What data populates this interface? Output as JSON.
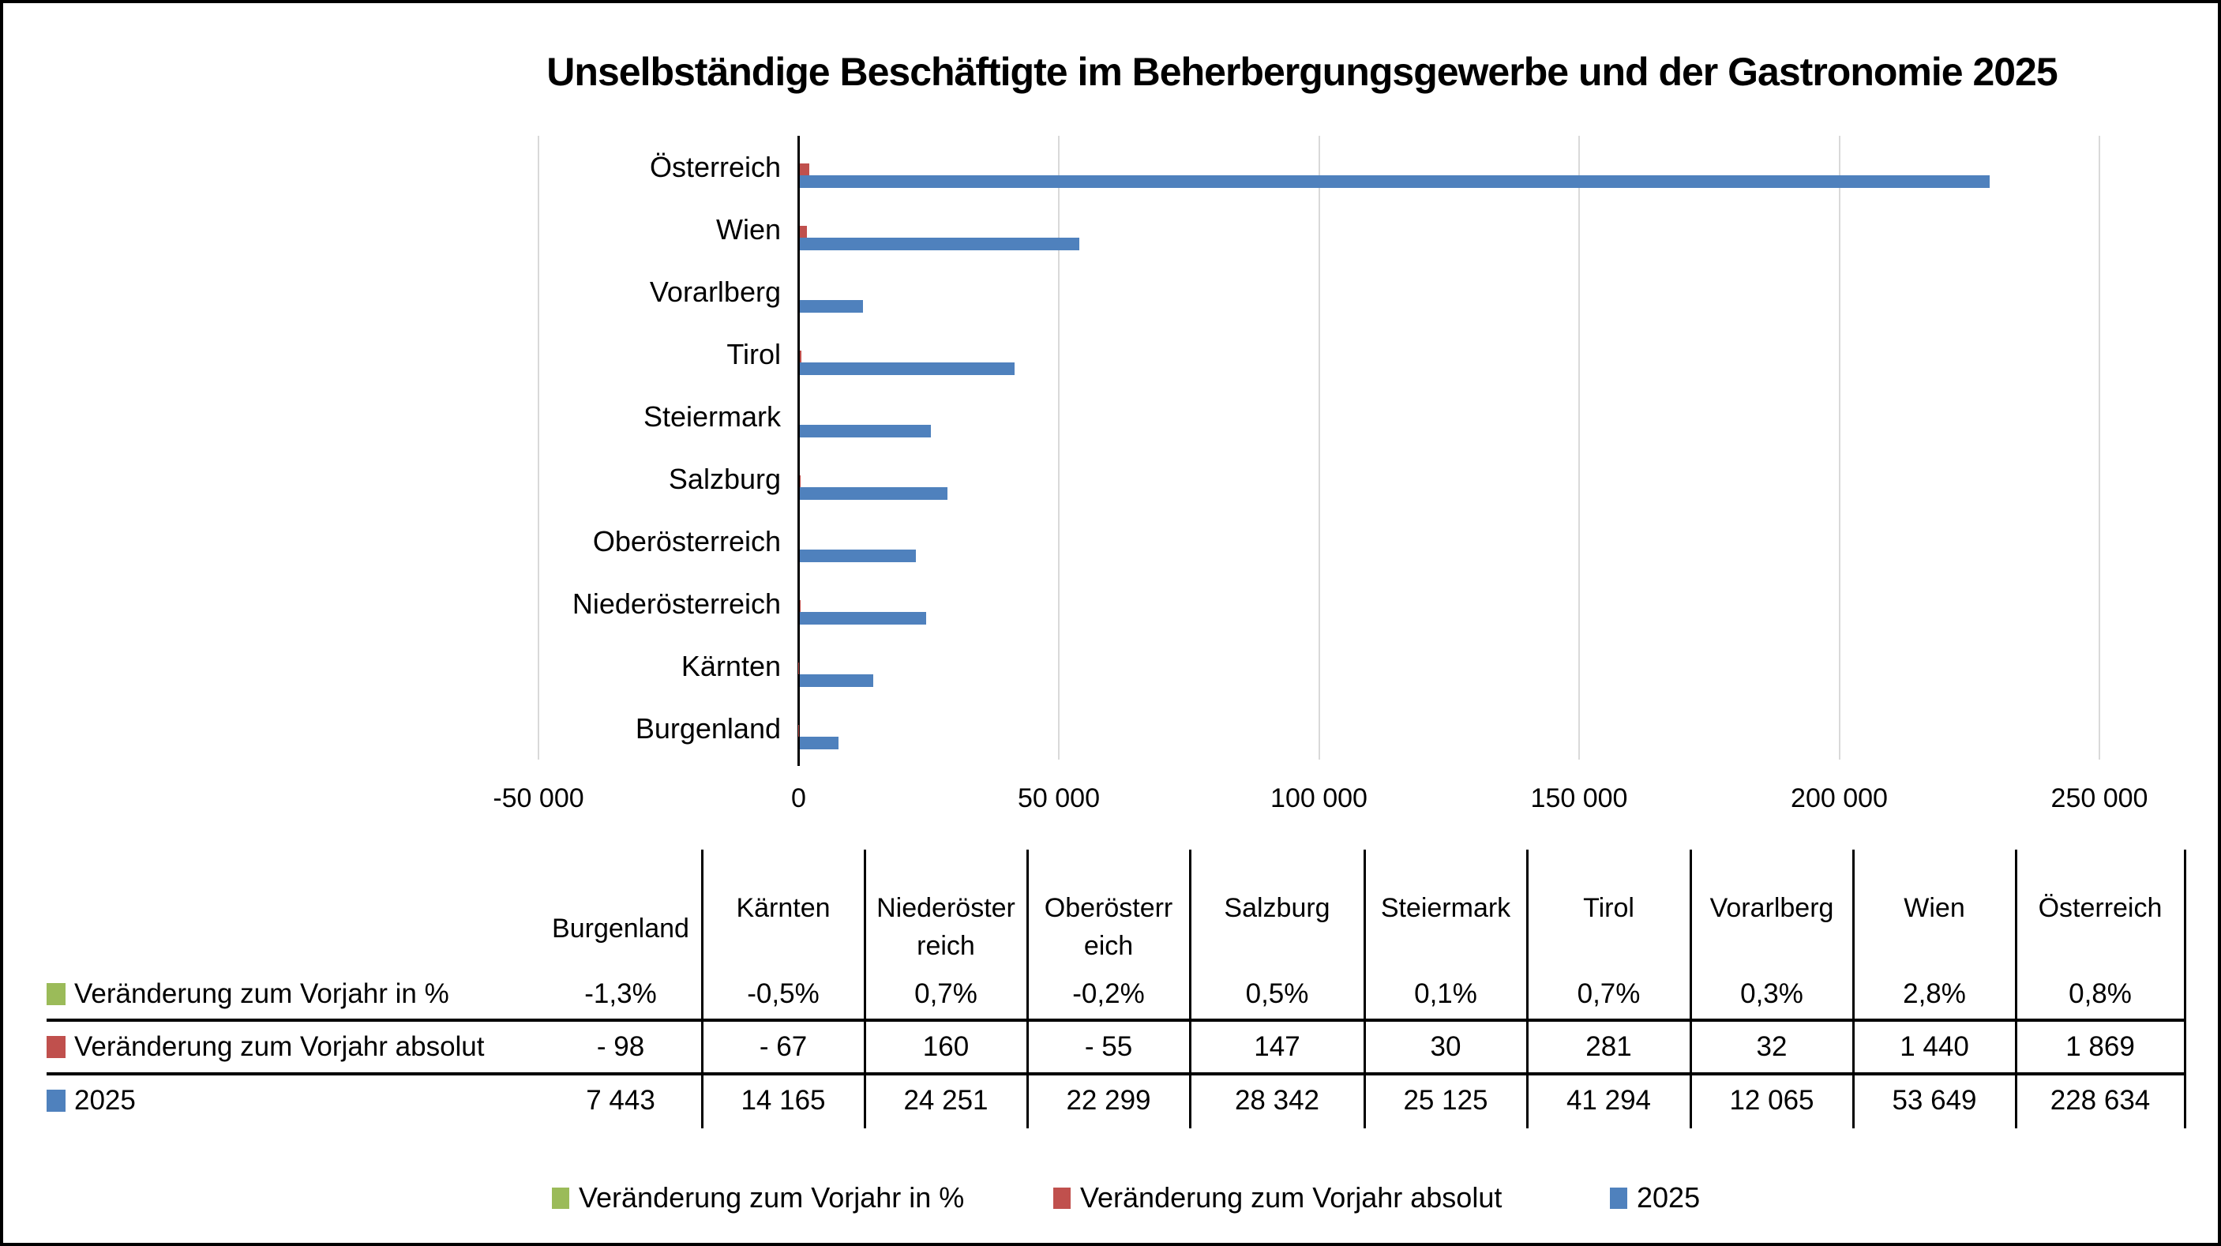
{
  "title": "Unselbständige Beschäftigte im Beherbergungsgewerbe und der Gastronomie 2025",
  "colors": {
    "series_percent": "#9bbb59",
    "series_absolut": "#c0504d",
    "series_2025": "#4f81bd",
    "gridline": "#d9d9d9",
    "axis": "#000000"
  },
  "chart_data": {
    "type": "bar",
    "orientation": "horizontal",
    "title": "Unselbständige Beschäftigte im Beherbergungsgewerbe und der Gastronomie 2025",
    "categories": [
      "Österreich",
      "Wien",
      "Vorarlberg",
      "Tirol",
      "Steiermark",
      "Salzburg",
      "Oberösterreich",
      "Niederösterreich",
      "Kärnten",
      "Burgenland"
    ],
    "series": [
      {
        "name": "Veränderung zum Vorjahr in %",
        "color": "#9bbb59",
        "values": [
          0.8,
          2.8,
          0.3,
          0.7,
          0.1,
          0.5,
          -0.2,
          0.7,
          -0.5,
          -1.3
        ]
      },
      {
        "name": "Veränderung zum Vorjahr absolut",
        "color": "#c0504d",
        "values": [
          1869,
          1440,
          32,
          281,
          30,
          147,
          -55,
          160,
          -67,
          -98
        ]
      },
      {
        "name": "2025",
        "color": "#4f81bd",
        "values": [
          228634,
          53649,
          12065,
          41294,
          25125,
          28342,
          22299,
          24251,
          14165,
          7443
        ]
      }
    ],
    "xlim": [
      -50000,
      250000
    ],
    "xticks": [
      {
        "value": -50000,
        "label": "-50 000"
      },
      {
        "value": 0,
        "label": "0"
      },
      {
        "value": 50000,
        "label": "50 000"
      },
      {
        "value": 100000,
        "label": "100 000"
      },
      {
        "value": 150000,
        "label": "150 000"
      },
      {
        "value": 200000,
        "label": "200 000"
      },
      {
        "value": 250000,
        "label": "250 000"
      }
    ],
    "grid": true,
    "legend_position": "bottom"
  },
  "table": {
    "columns": [
      {
        "label": "Burgenland",
        "display": "Burgenland"
      },
      {
        "label": "Kärnten",
        "display": "Kärnten"
      },
      {
        "label": "Niederösterreich",
        "display": "Niederöster\nreich"
      },
      {
        "label": "Oberösterreich",
        "display": "Oberösterr\neich"
      },
      {
        "label": "Salzburg",
        "display": "Salzburg"
      },
      {
        "label": "Steiermark",
        "display": "Steiermark"
      },
      {
        "label": "Tirol",
        "display": "Tirol"
      },
      {
        "label": "Vorarlberg",
        "display": "Vorarlberg"
      },
      {
        "label": "Wien",
        "display": "Wien"
      },
      {
        "label": "Österreich",
        "display": "Österreich"
      }
    ],
    "rows": [
      {
        "label": "Veränderung zum Vorjahr in %",
        "key_color": "#9bbb59",
        "values": [
          "-1,3%",
          "-0,5%",
          "0,7%",
          "-0,2%",
          "0,5%",
          "0,1%",
          "0,7%",
          "0,3%",
          "2,8%",
          "0,8%"
        ]
      },
      {
        "label": "Veränderung zum Vorjahr absolut",
        "key_color": "#c0504d",
        "values": [
          "- 98",
          "- 67",
          "160",
          "- 55",
          "147",
          "30",
          "281",
          "32",
          "1 440",
          "1 869"
        ]
      },
      {
        "label": "2025",
        "key_color": "#4f81bd",
        "values": [
          "7 443",
          "14 165",
          "24 251",
          "22 299",
          "28 342",
          "25 125",
          "41 294",
          "12 065",
          "53 649",
          "228 634"
        ]
      }
    ]
  },
  "legend": {
    "items": [
      {
        "label": "Veränderung zum Vorjahr in %",
        "color": "#9bbb59"
      },
      {
        "label": "Veränderung zum Vorjahr absolut",
        "color": "#c0504d"
      },
      {
        "label": "2025",
        "color": "#4f81bd"
      }
    ]
  }
}
